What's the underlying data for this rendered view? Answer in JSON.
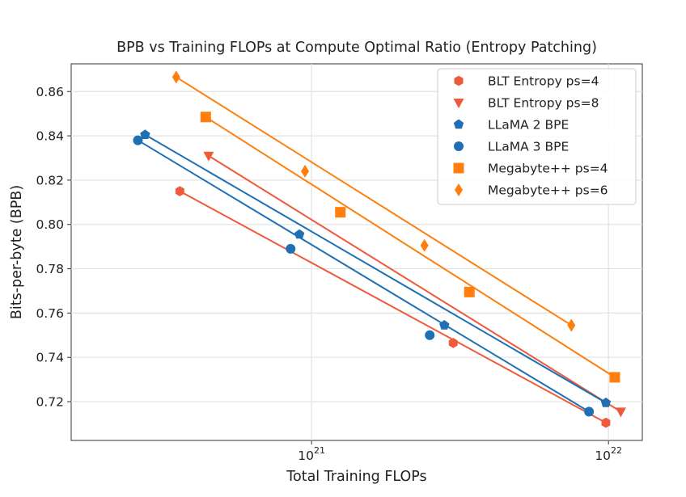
{
  "chart_data": {
    "type": "scatter",
    "title": "BPB vs Training FLOPs at Compute Optimal Ratio (Entropy Patching)",
    "xlabel": "Total Training FLOPs",
    "ylabel": "Bits-per-byte (BPB)",
    "xscale": "log",
    "xlim": [
      1.55e+20,
      1.3e+22
    ],
    "ylim": [
      0.7025,
      0.8725
    ],
    "xticks": [
      {
        "value": 1e+21,
        "base": "10",
        "exp": "21"
      },
      {
        "value": 1e+22,
        "base": "10",
        "exp": "22"
      }
    ],
    "yticks": [
      {
        "value": 0.72,
        "label": "0.72"
      },
      {
        "value": 0.74,
        "label": "0.74"
      },
      {
        "value": 0.76,
        "label": "0.76"
      },
      {
        "value": 0.78,
        "label": "0.78"
      },
      {
        "value": 0.8,
        "label": "0.80"
      },
      {
        "value": 0.82,
        "label": "0.82"
      },
      {
        "value": 0.84,
        "label": "0.84"
      },
      {
        "value": 0.86,
        "label": "0.86"
      }
    ],
    "grid": true,
    "legend_position": "top-right",
    "series": [
      {
        "name": "BLT Entropy ps=4",
        "marker": "hexagon",
        "color": "#EE5A3A",
        "points": [
          {
            "x": 3.6e+20,
            "y": 0.815
          },
          {
            "x": 3e+21,
            "y": 0.7465
          },
          {
            "x": 9.8e+21,
            "y": 0.7105
          }
        ],
        "fit": [
          {
            "x": 3.6e+20,
            "y": 0.815
          },
          {
            "x": 9.8e+21,
            "y": 0.7105
          }
        ]
      },
      {
        "name": "BLT Entropy ps=8",
        "marker": "triangle_down",
        "color": "#EE5A3A",
        "points": [
          {
            "x": 4.5e+20,
            "y": 0.831
          },
          {
            "x": 1.1e+22,
            "y": 0.7155
          }
        ],
        "fit": [
          {
            "x": 4.5e+20,
            "y": 0.831
          },
          {
            "x": 1.1e+22,
            "y": 0.7155
          }
        ]
      },
      {
        "name": "LLaMA 2 BPE",
        "marker": "pentagon",
        "color": "#1F6FB4",
        "points": [
          {
            "x": 2.75e+20,
            "y": 0.8405
          },
          {
            "x": 9.1e+20,
            "y": 0.7955
          },
          {
            "x": 2.8e+21,
            "y": 0.7545
          },
          {
            "x": 9.8e+21,
            "y": 0.7195
          }
        ],
        "fit": [
          {
            "x": 2.75e+20,
            "y": 0.8405
          },
          {
            "x": 9.8e+21,
            "y": 0.7195
          }
        ]
      },
      {
        "name": "LLaMA 3 BPE",
        "marker": "circle",
        "color": "#1F6FB4",
        "points": [
          {
            "x": 2.6e+20,
            "y": 0.838
          },
          {
            "x": 8.5e+20,
            "y": 0.789
          },
          {
            "x": 2.5e+21,
            "y": 0.75
          },
          {
            "x": 8.6e+21,
            "y": 0.7155
          }
        ],
        "fit": [
          {
            "x": 2.6e+20,
            "y": 0.838
          },
          {
            "x": 8.6e+21,
            "y": 0.7155
          }
        ]
      },
      {
        "name": "Megabyte++ ps=4",
        "marker": "square",
        "color": "#FF7F0E",
        "points": [
          {
            "x": 4.4e+20,
            "y": 0.8485
          },
          {
            "x": 1.25e+21,
            "y": 0.8055
          },
          {
            "x": 3.4e+21,
            "y": 0.7695
          },
          {
            "x": 1.05e+22,
            "y": 0.731
          }
        ],
        "fit": [
          {
            "x": 4.4e+20,
            "y": 0.8485
          },
          {
            "x": 1.05e+22,
            "y": 0.731
          }
        ]
      },
      {
        "name": "Megabyte++ ps=6",
        "marker": "diamond",
        "color": "#FF7F0E",
        "points": [
          {
            "x": 3.5e+20,
            "y": 0.8665
          },
          {
            "x": 9.5e+20,
            "y": 0.824
          },
          {
            "x": 2.4e+21,
            "y": 0.7905
          },
          {
            "x": 7.5e+21,
            "y": 0.7545
          }
        ],
        "fit": [
          {
            "x": 3.5e+20,
            "y": 0.8665
          },
          {
            "x": 7.5e+21,
            "y": 0.7545
          }
        ]
      }
    ]
  }
}
